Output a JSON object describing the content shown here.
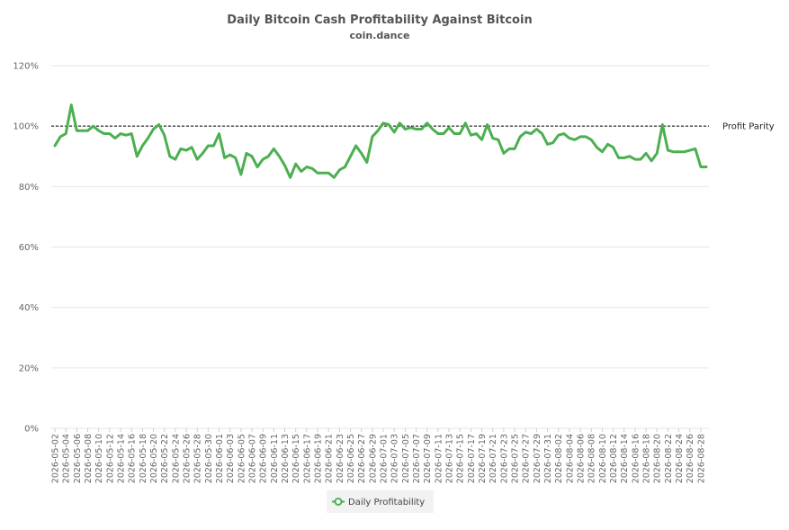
{
  "colors": {
    "series": "#4caf50",
    "parity_line": "#000000",
    "grid": "#e6e6e6"
  },
  "chart_data": {
    "type": "line",
    "title": "Daily Bitcoin Cash Profitability Against Bitcoin",
    "subtitle": "coin.dance",
    "xlabel": "",
    "ylabel": "",
    "ylim": [
      0,
      120
    ],
    "y_ticks": [
      "0%",
      "20%",
      "40%",
      "60%",
      "80%",
      "100%",
      "120%"
    ],
    "y_tick_values": [
      0,
      20,
      40,
      60,
      80,
      100,
      120
    ],
    "grid": true,
    "legend_position": "bottom-center",
    "reference_line": {
      "value": 100,
      "label": "Profit Parity"
    },
    "x_tick_labels": [
      "2026-05-02",
      "2026-05-04",
      "2026-05-06",
      "2026-05-08",
      "2026-05-10",
      "2026-05-12",
      "2026-05-14",
      "2026-05-16",
      "2026-05-18",
      "2026-05-20",
      "2026-05-22",
      "2026-05-24",
      "2026-05-26",
      "2026-05-28",
      "2026-05-30",
      "2026-06-01",
      "2026-06-03",
      "2026-06-05",
      "2026-06-07",
      "2026-06-09",
      "2026-06-11",
      "2026-06-13",
      "2026-06-15",
      "2026-06-17",
      "2026-06-19",
      "2026-06-21",
      "2026-06-23",
      "2026-06-25",
      "2026-06-27",
      "2026-06-29",
      "2026-07-01",
      "2026-07-03",
      "2026-07-05",
      "2026-07-07",
      "2026-07-09",
      "2026-07-11",
      "2026-07-13",
      "2026-07-15",
      "2026-07-17",
      "2026-07-19",
      "2026-07-21",
      "2026-07-23",
      "2026-07-25",
      "2026-07-27",
      "2026-07-29",
      "2026-07-31",
      "2026-08-02",
      "2026-08-04",
      "2026-08-06",
      "2026-08-08",
      "2026-08-10",
      "2026-08-12",
      "2026-08-14",
      "2026-08-16",
      "2026-08-18",
      "2026-08-20",
      "2026-08-22",
      "2026-08-24",
      "2026-08-26",
      "2026-08-28"
    ],
    "x_start": "2026-05-02",
    "series": [
      {
        "name": "Daily Profitability",
        "values": [
          93.5,
          96.5,
          97.5,
          107,
          98.5,
          98.5,
          98.5,
          100,
          98.5,
          97.5,
          97.5,
          96,
          97.5,
          97,
          97.5,
          90,
          93.5,
          96,
          99,
          100.5,
          97,
          90,
          89,
          92.5,
          92,
          93,
          89,
          91,
          93.5,
          93.5,
          97.5,
          89.5,
          90.5,
          89.5,
          84,
          91,
          90,
          86.5,
          89,
          90,
          92.5,
          90,
          87,
          83,
          87.5,
          85,
          86.5,
          86,
          84.5,
          84.5,
          84.5,
          83,
          85.5,
          86.5,
          90,
          93.5,
          91,
          88,
          96.5,
          98.5,
          101,
          100.5,
          98,
          101,
          99,
          99.5,
          99,
          99,
          101,
          99,
          97.5,
          97.5,
          99.5,
          97.5,
          97.5,
          101,
          97,
          97.5,
          95.5,
          100.5,
          96,
          95.5,
          91,
          92.5,
          92.5,
          96.5,
          98,
          97.5,
          99,
          97.5,
          94,
          94.5,
          97,
          97.5,
          96,
          95.5,
          96.5,
          96.5,
          95.5,
          93,
          91.5,
          94,
          93,
          89.5,
          89.5,
          90,
          89,
          89,
          91,
          88.5,
          91,
          100.5,
          92,
          91.5,
          91.5,
          91.5,
          92,
          92.5,
          86.5,
          86.5
        ]
      }
    ]
  }
}
